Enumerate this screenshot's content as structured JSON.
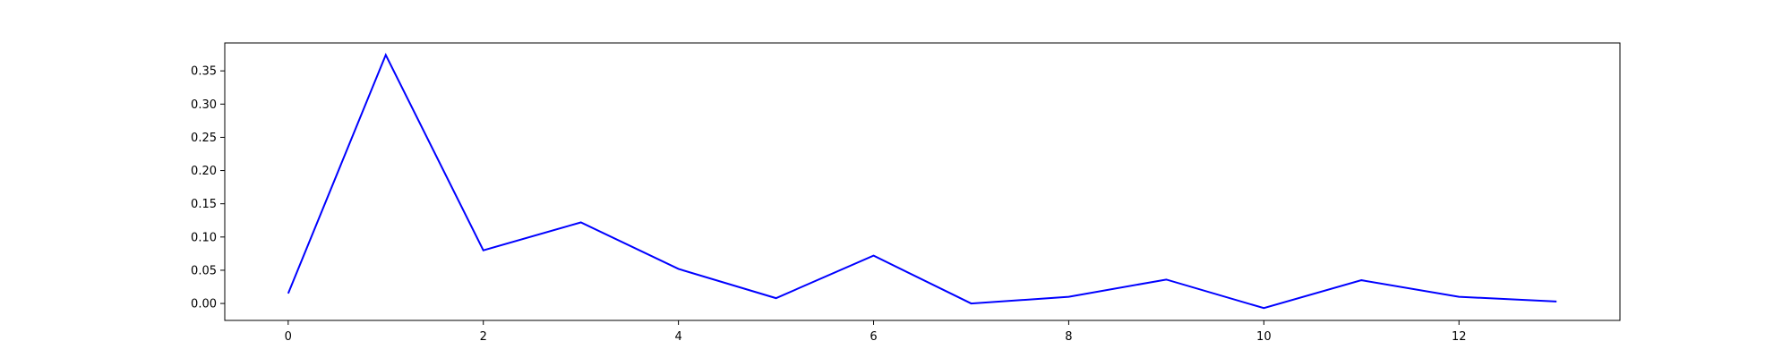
{
  "chart_data": {
    "type": "line",
    "title": "",
    "xlabel": "",
    "ylabel": "",
    "xlim": [
      -0.65,
      13.65
    ],
    "ylim": [
      -0.0255,
      0.392
    ],
    "x_ticks": [
      0,
      2,
      4,
      6,
      8,
      10,
      12
    ],
    "y_ticks": [
      0.0,
      0.05,
      0.1,
      0.15,
      0.2,
      0.25,
      0.3,
      0.35
    ],
    "x_tick_labels": [
      "0",
      "2",
      "4",
      "6",
      "8",
      "10",
      "12"
    ],
    "y_tick_labels": [
      "0.00",
      "0.05",
      "0.10",
      "0.15",
      "0.20",
      "0.25",
      "0.30",
      "0.35"
    ],
    "grid": false,
    "legend": "none",
    "series": [
      {
        "color": "#0000ff",
        "x": [
          0,
          1,
          2,
          3,
          4,
          5,
          6,
          7,
          8,
          9,
          10,
          11,
          12,
          13
        ],
        "y": [
          0.015,
          0.374,
          0.08,
          0.122,
          0.052,
          0.008,
          0.072,
          0.0,
          0.01,
          0.036,
          -0.007,
          0.035,
          0.01,
          0.003
        ]
      }
    ]
  }
}
